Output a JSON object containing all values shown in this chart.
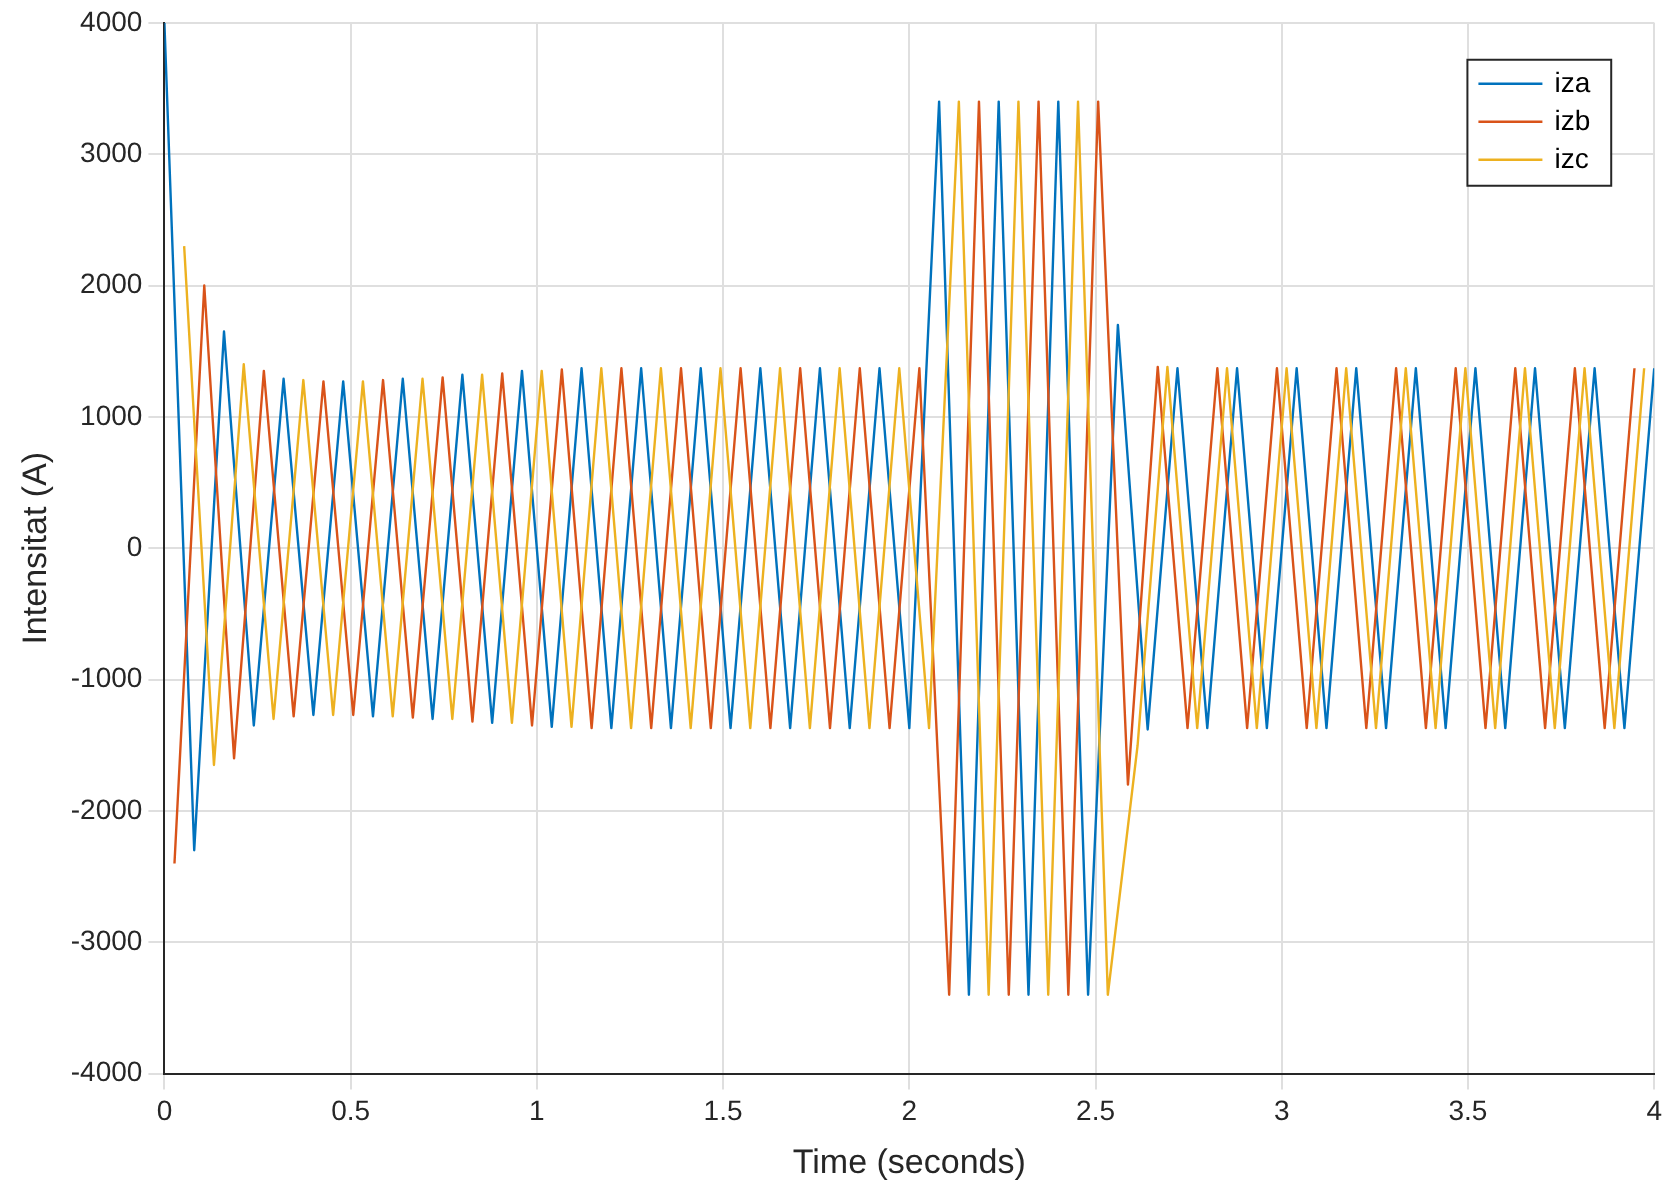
{
  "chart_data": {
    "type": "line",
    "xlabel": "Time (seconds)",
    "ylabel": "Intensitat (A)",
    "xlim": [
      0,
      4
    ],
    "xticks": [
      0,
      0.5,
      1,
      1.5,
      2,
      2.5,
      3,
      3.5,
      4
    ],
    "ylim": [
      -4000,
      4000
    ],
    "yticks": [
      -4000,
      -3000,
      -2000,
      -1000,
      0,
      1000,
      2000,
      3000,
      4000
    ],
    "grid": true,
    "legend": "top right",
    "marker": "none",
    "line_style": "solid",
    "series": [
      {
        "name": "iza",
        "color": "#0072bd",
        "x": [
          0,
          0.08,
          0.16,
          0.24,
          0.32,
          0.4,
          0.48,
          0.56,
          0.64,
          0.72,
          0.8,
          0.88,
          0.96,
          1.04,
          1.12,
          1.2,
          1.28,
          1.36,
          1.44,
          1.52,
          1.6,
          1.68,
          1.76,
          1.84,
          1.92,
          2,
          2.08,
          2.16,
          2.24,
          2.32,
          2.4,
          2.48,
          2.56,
          2.64,
          2.72,
          2.8,
          2.88,
          2.96,
          3.04,
          3.12,
          3.2,
          3.28,
          3.36,
          3.44,
          3.52,
          3.6,
          3.68,
          3.76,
          3.84,
          3.92,
          4
        ],
        "values": [
          4000,
          -2300,
          1650,
          -1350,
          1290,
          -1270,
          1270,
          -1280,
          1290,
          -1300,
          1320,
          -1330,
          1350,
          -1360,
          1370,
          -1370,
          1370,
          -1370,
          1370,
          -1370,
          1370,
          -1370,
          1370,
          -1370,
          1370,
          -1370,
          3400,
          -3400,
          3400,
          -3400,
          3400,
          -3400,
          1700,
          -1380,
          1370,
          -1370,
          1370,
          -1370,
          1370,
          -1370,
          1370,
          -1370,
          1370,
          -1370,
          1370,
          -1370,
          1370,
          -1370,
          1370,
          -1370,
          1370
        ]
      },
      {
        "name": "izb",
        "color": "#d95319",
        "x": [
          0.027,
          0.107,
          0.187,
          0.267,
          0.347,
          0.427,
          0.507,
          0.587,
          0.667,
          0.747,
          0.827,
          0.907,
          0.987,
          1.067,
          1.147,
          1.227,
          1.307,
          1.387,
          1.467,
          1.547,
          1.627,
          1.707,
          1.787,
          1.867,
          1.947,
          2.027,
          2.107,
          2.187,
          2.267,
          2.347,
          2.427,
          2.507,
          2.587,
          2.667,
          2.747,
          2.827,
          2.907,
          2.987,
          3.067,
          3.147,
          3.227,
          3.307,
          3.387,
          3.467,
          3.547,
          3.627,
          3.707,
          3.787,
          3.867,
          3.947
        ],
        "values": [
          -2400,
          2000,
          -1600,
          1350,
          -1280,
          1270,
          -1270,
          1280,
          -1290,
          1300,
          -1320,
          1330,
          -1350,
          1360,
          -1370,
          1370,
          -1370,
          1370,
          -1370,
          1370,
          -1370,
          1370,
          -1370,
          1370,
          -1370,
          1370,
          -3400,
          3400,
          -3400,
          3400,
          -3400,
          3400,
          -1800,
          1380,
          -1370,
          1370,
          -1370,
          1370,
          -1370,
          1370,
          -1370,
          1370,
          -1370,
          1370,
          -1370,
          1370,
          -1370,
          1370,
          -1370,
          1370
        ]
      },
      {
        "name": "izc",
        "color": "#edb120",
        "x": [
          0.053,
          0.133,
          0.213,
          0.293,
          0.373,
          0.453,
          0.533,
          0.613,
          0.693,
          0.773,
          0.853,
          0.933,
          1.013,
          1.093,
          1.173,
          1.253,
          1.333,
          1.413,
          1.493,
          1.573,
          1.653,
          1.733,
          1.813,
          1.893,
          1.973,
          2.053,
          2.133,
          2.213,
          2.293,
          2.373,
          2.453,
          2.533,
          2.613,
          2.693,
          2.773,
          2.853,
          2.933,
          3.013,
          3.093,
          3.173,
          3.253,
          3.333,
          3.413,
          3.493,
          3.573,
          3.653,
          3.733,
          3.813,
          3.893,
          3.973
        ],
        "values": [
          2300,
          -1650,
          1400,
          -1300,
          1280,
          -1270,
          1270,
          -1280,
          1290,
          -1300,
          1320,
          -1330,
          1350,
          -1360,
          1370,
          -1370,
          1370,
          -1370,
          1370,
          -1370,
          1370,
          -1370,
          1370,
          -1370,
          1370,
          -1370,
          3400,
          -3400,
          3400,
          -3400,
          3400,
          -3400,
          -1500,
          1380,
          -1370,
          1370,
          -1370,
          1370,
          -1370,
          1370,
          -1370,
          1370,
          -1370,
          1370,
          -1370,
          1370,
          -1370,
          1370,
          -1370,
          1370
        ]
      }
    ]
  }
}
